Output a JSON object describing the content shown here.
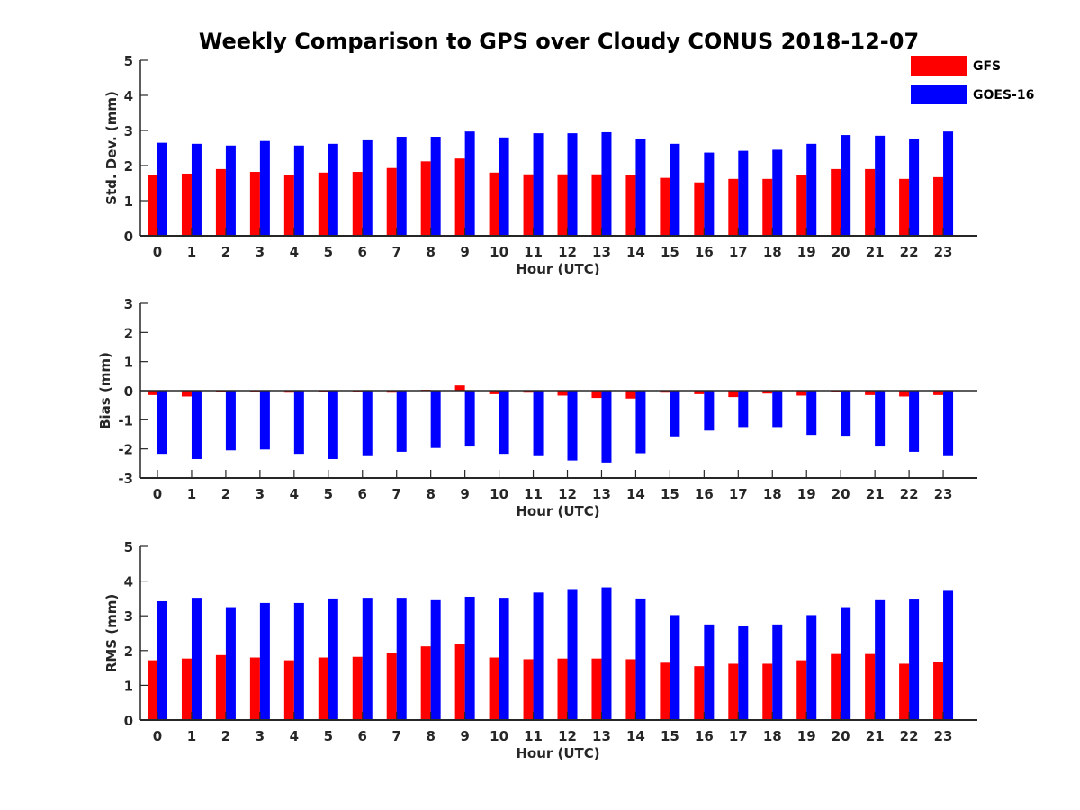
{
  "title": "Weekly Comparison to GPS over Cloudy CONUS 2018-12-07",
  "legend": {
    "placement": "top-right",
    "entries": [
      {
        "name": "GFS",
        "color": "#ff0000"
      },
      {
        "name": "GOES-16",
        "color": "#0000ff"
      }
    ]
  },
  "chart_data": [
    {
      "type": "bar",
      "xlabel": "Hour (UTC)",
      "ylabel": "Std. Dev. (mm)",
      "ylim": [
        0,
        5
      ],
      "yticks": [
        0,
        1,
        2,
        3,
        4,
        5
      ],
      "categories": [
        "0",
        "1",
        "2",
        "3",
        "4",
        "5",
        "6",
        "7",
        "8",
        "9",
        "10",
        "11",
        "12",
        "13",
        "14",
        "15",
        "16",
        "17",
        "18",
        "19",
        "20",
        "21",
        "22",
        "23"
      ],
      "series": [
        {
          "name": "GFS",
          "color": "#ff0000",
          "values": [
            1.72,
            1.77,
            1.9,
            1.82,
            1.72,
            1.8,
            1.82,
            1.93,
            2.12,
            2.2,
            1.8,
            1.75,
            1.75,
            1.75,
            1.72,
            1.65,
            1.52,
            1.62,
            1.62,
            1.72,
            1.9,
            1.9,
            1.62,
            1.67
          ]
        },
        {
          "name": "GOES-16",
          "color": "#0000ff",
          "values": [
            2.65,
            2.62,
            2.57,
            2.7,
            2.57,
            2.62,
            2.72,
            2.82,
            2.82,
            2.97,
            2.8,
            2.92,
            2.92,
            2.95,
            2.77,
            2.62,
            2.37,
            2.42,
            2.45,
            2.62,
            2.87,
            2.85,
            2.77,
            2.97
          ]
        }
      ]
    },
    {
      "type": "bar",
      "xlabel": "Hour (UTC)",
      "ylabel": "Bias (mm)",
      "ylim": [
        -3,
        3
      ],
      "yticks": [
        -3,
        -2,
        -1,
        0,
        1,
        2,
        3
      ],
      "categories": [
        "0",
        "1",
        "2",
        "3",
        "4",
        "5",
        "6",
        "7",
        "8",
        "9",
        "10",
        "11",
        "12",
        "13",
        "14",
        "15",
        "16",
        "17",
        "18",
        "19",
        "20",
        "21",
        "22",
        "23"
      ],
      "series": [
        {
          "name": "GFS",
          "color": "#ff0000",
          "values": [
            -0.15,
            -0.2,
            -0.05,
            -0.03,
            -0.07,
            -0.05,
            -0.03,
            -0.07,
            0.03,
            0.18,
            -0.12,
            -0.07,
            -0.17,
            -0.25,
            -0.27,
            -0.07,
            -0.12,
            -0.22,
            -0.1,
            -0.17,
            -0.05,
            -0.15,
            -0.2,
            -0.15
          ]
        },
        {
          "name": "GOES-16",
          "color": "#0000ff",
          "values": [
            -2.17,
            -2.35,
            -2.05,
            -2.02,
            -2.17,
            -2.35,
            -2.25,
            -2.1,
            -1.97,
            -1.92,
            -2.17,
            -2.25,
            -2.4,
            -2.47,
            -2.15,
            -1.57,
            -1.37,
            -1.25,
            -1.25,
            -1.52,
            -1.55,
            -1.92,
            -2.1,
            -2.25
          ]
        }
      ]
    },
    {
      "type": "bar",
      "xlabel": "Hour (UTC)",
      "ylabel": "RMS (mm)",
      "ylim": [
        0,
        5
      ],
      "yticks": [
        0,
        1,
        2,
        3,
        4,
        5
      ],
      "categories": [
        "0",
        "1",
        "2",
        "3",
        "4",
        "5",
        "6",
        "7",
        "8",
        "9",
        "10",
        "11",
        "12",
        "13",
        "14",
        "15",
        "16",
        "17",
        "18",
        "19",
        "20",
        "21",
        "22",
        "23"
      ],
      "series": [
        {
          "name": "GFS",
          "color": "#ff0000",
          "values": [
            1.72,
            1.77,
            1.87,
            1.8,
            1.72,
            1.8,
            1.82,
            1.93,
            2.12,
            2.2,
            1.8,
            1.75,
            1.77,
            1.77,
            1.75,
            1.65,
            1.55,
            1.62,
            1.62,
            1.72,
            1.9,
            1.9,
            1.62,
            1.67
          ]
        },
        {
          "name": "GOES-16",
          "color": "#0000ff",
          "values": [
            3.42,
            3.52,
            3.25,
            3.37,
            3.37,
            3.5,
            3.52,
            3.52,
            3.45,
            3.55,
            3.52,
            3.67,
            3.77,
            3.82,
            3.5,
            3.02,
            2.75,
            2.72,
            2.75,
            3.02,
            3.25,
            3.45,
            3.47,
            3.72
          ]
        }
      ]
    }
  ]
}
